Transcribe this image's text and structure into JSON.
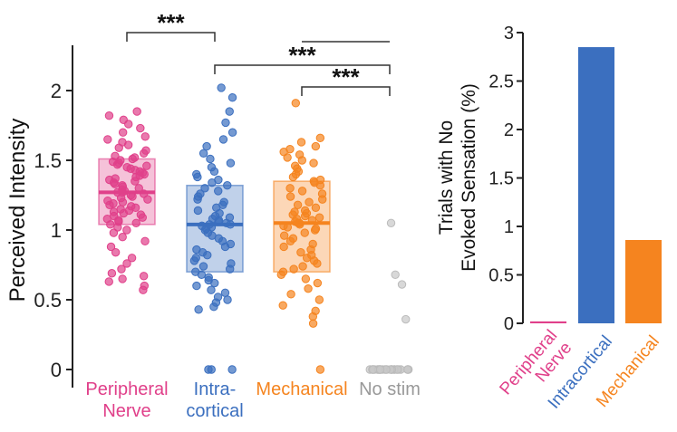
{
  "chart_data": [
    {
      "type": "scatter",
      "title": "",
      "xlabel": "",
      "ylabel": "Perceived Intensity",
      "ylim": [
        0,
        2.3
      ],
      "yticks": [
        "0",
        "0.5",
        "1",
        "1.5",
        "2"
      ],
      "ytick_values": [
        0,
        0.5,
        1,
        1.5,
        2
      ],
      "categories": [
        {
          "lines": [
            "Peripheral",
            "Nerve"
          ],
          "color": "#e0408a"
        },
        {
          "lines": [
            "Intra-",
            "cortical"
          ],
          "color": "#3b6fbf"
        },
        {
          "lines": [
            "Mechanical"
          ],
          "color": "#f5841f"
        },
        {
          "lines": [
            "No stim"
          ],
          "color": "#999999"
        }
      ],
      "box_stats": [
        {
          "median": 1.27,
          "q1": 1.04,
          "q3": 1.51
        },
        {
          "median": 1.04,
          "q1": 0.7,
          "q3": 1.32
        },
        {
          "median": 1.05,
          "q1": 0.7,
          "q3": 1.35
        },
        {
          "median": 0.0,
          "q1": 0.0,
          "q3": 0.0
        }
      ],
      "series": [
        {
          "name": "Peripheral Nerve",
          "values": [
            0.57,
            0.6,
            0.63,
            0.65,
            0.67,
            0.69,
            0.72,
            0.76,
            0.8,
            0.84,
            0.88,
            0.92,
            0.95,
            0.98,
            1.0,
            1.02,
            1.04,
            1.05,
            1.06,
            1.07,
            1.08,
            1.09,
            1.1,
            1.11,
            1.12,
            1.13,
            1.14,
            1.15,
            1.16,
            1.17,
            1.18,
            1.19,
            1.2,
            1.21,
            1.22,
            1.23,
            1.24,
            1.25,
            1.26,
            1.27,
            1.27,
            1.28,
            1.29,
            1.3,
            1.31,
            1.32,
            1.33,
            1.34,
            1.35,
            1.36,
            1.37,
            1.38,
            1.39,
            1.4,
            1.41,
            1.42,
            1.43,
            1.44,
            1.45,
            1.46,
            1.47,
            1.48,
            1.49,
            1.5,
            1.51,
            1.52,
            1.53,
            1.55,
            1.57,
            1.59,
            1.61,
            1.63,
            1.65,
            1.67,
            1.7,
            1.73,
            1.76,
            1.79,
            1.82,
            1.85
          ]
        },
        {
          "name": "Intracortical",
          "values": [
            0.0,
            0.0,
            0.0,
            0.43,
            0.45,
            0.48,
            0.5,
            0.52,
            0.55,
            0.57,
            0.6,
            0.62,
            0.64,
            0.66,
            0.68,
            0.7,
            0.72,
            0.74,
            0.76,
            0.78,
            0.8,
            0.82,
            0.84,
            0.86,
            0.88,
            0.9,
            0.92,
            0.94,
            0.96,
            0.98,
            1.0,
            1.01,
            1.02,
            1.03,
            1.04,
            1.04,
            1.05,
            1.06,
            1.07,
            1.08,
            1.09,
            1.1,
            1.12,
            1.14,
            1.16,
            1.18,
            1.2,
            1.22,
            1.24,
            1.26,
            1.28,
            1.3,
            1.32,
            1.34,
            1.36,
            1.38,
            1.4,
            1.42,
            1.45,
            1.48,
            1.51,
            1.55,
            1.6,
            1.65,
            1.7,
            1.77,
            1.85,
            1.95,
            2.02
          ]
        },
        {
          "name": "Mechanical",
          "values": [
            0.0,
            0.33,
            0.38,
            0.42,
            0.46,
            0.5,
            0.54,
            0.58,
            0.62,
            0.65,
            0.68,
            0.7,
            0.72,
            0.74,
            0.76,
            0.78,
            0.8,
            0.82,
            0.84,
            0.86,
            0.88,
            0.9,
            0.92,
            0.94,
            0.96,
            0.98,
            1.0,
            1.01,
            1.02,
            1.03,
            1.04,
            1.05,
            1.05,
            1.06,
            1.07,
            1.08,
            1.09,
            1.1,
            1.11,
            1.12,
            1.13,
            1.14,
            1.16,
            1.18,
            1.2,
            1.22,
            1.24,
            1.26,
            1.28,
            1.3,
            1.32,
            1.34,
            1.35,
            1.36,
            1.38,
            1.4,
            1.42,
            1.44,
            1.46,
            1.48,
            1.5,
            1.52,
            1.54,
            1.56,
            1.58,
            1.6,
            1.63,
            1.66,
            1.91
          ]
        },
        {
          "name": "No stim",
          "values": [
            0.0,
            0.0,
            0.0,
            0.0,
            0.0,
            0.0,
            0.0,
            0.0,
            0.0,
            0.0,
            0.0,
            0.0,
            0.0,
            0.0,
            0.0,
            0.0,
            0.0,
            0.0,
            0.0,
            0.0,
            0.0,
            0.0,
            0.0,
            0.0,
            0.0,
            0.0,
            0.0,
            0.0,
            0.36,
            0.61,
            0.68,
            1.05
          ]
        }
      ],
      "significance": [
        {
          "from": 0,
          "to": 1,
          "label": "***"
        },
        {
          "from": 1,
          "to": 3,
          "label": "***"
        },
        {
          "from": 2,
          "to": 3,
          "label": "***"
        }
      ]
    },
    {
      "type": "bar",
      "title": "",
      "ylabel_lines": [
        "Trials with No",
        "Evoked Sensation (%)"
      ],
      "ylim": [
        0,
        3
      ],
      "yticks": [
        "0",
        "0.5",
        "1",
        "1.5",
        "2",
        "2.5",
        "3"
      ],
      "ytick_values": [
        0,
        0.5,
        1,
        1.5,
        2,
        2.5,
        3
      ],
      "categories": [
        "Peripheral Nerve",
        "Intracortical",
        "Mechanical"
      ],
      "category_lines": [
        [
          "Peripheral",
          "Nerve"
        ],
        [
          "Intracortical"
        ],
        [
          "Mechanical"
        ]
      ],
      "values": [
        0.02,
        2.85,
        0.86
      ],
      "colors": [
        "#e0408a",
        "#3b6fbf",
        "#f5841f"
      ]
    }
  ]
}
